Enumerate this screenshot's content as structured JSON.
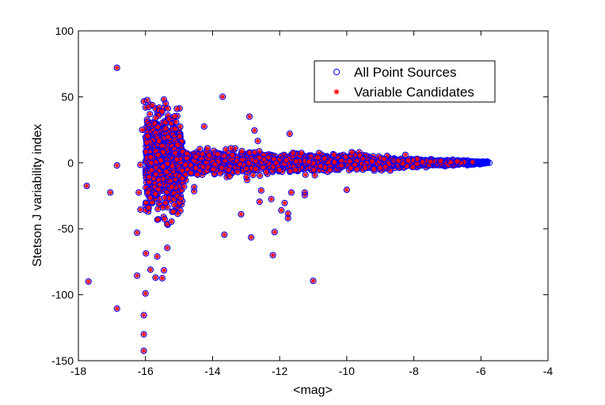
{
  "chart_data": {
    "type": "scatter",
    "title": "",
    "xlabel": "<mag>",
    "ylabel": "Stetson J variability index",
    "xlim": [
      -18,
      -4
    ],
    "ylim": [
      -150,
      100
    ],
    "xticks": [
      -18,
      -16,
      -14,
      -12,
      -10,
      -8,
      -6,
      -4
    ],
    "yticks": [
      -150,
      -100,
      -50,
      0,
      50,
      100
    ],
    "xtick_labels": [
      "-18",
      "-16",
      "-14",
      "-12",
      "-10",
      "-8",
      "-6",
      "-4"
    ],
    "ytick_labels": [
      "-150",
      "-100",
      "-50",
      "0",
      "50",
      "100"
    ],
    "grid": false,
    "legend_position": "top-right",
    "series": [
      {
        "name": "All Point Sources",
        "marker": "open-circle",
        "color": "#0000ff",
        "points": [
          [
            -17.75,
            -17.5
          ],
          [
            -17.7,
            -90
          ],
          [
            -17.05,
            -22.5
          ],
          [
            -16.85,
            -110.5
          ],
          [
            -16.85,
            72
          ],
          [
            -16.85,
            -2
          ],
          [
            -16.25,
            -85.5
          ],
          [
            -16.25,
            -53
          ],
          [
            -16.2,
            -22.5
          ],
          [
            -16.15,
            -35.5
          ],
          [
            -16.15,
            -1.5
          ],
          [
            -16.05,
            -115.5
          ],
          [
            -16.05,
            -130
          ],
          [
            -16.05,
            -142.5
          ],
          [
            -16.0,
            -99
          ],
          [
            -16.1,
            25
          ],
          [
            -16.05,
            46.5
          ],
          [
            -15.95,
            47.5
          ],
          [
            -15.95,
            31
          ],
          [
            -15.9,
            29.5
          ],
          [
            -15.85,
            -81
          ],
          [
            -15.7,
            -87
          ],
          [
            -15.65,
            -71
          ],
          [
            -15.5,
            -87.5
          ],
          [
            -15.45,
            -81.5
          ],
          [
            -15.5,
            39
          ],
          [
            -15.45,
            48
          ],
          [
            -15.4,
            45
          ],
          [
            -15.35,
            -64.5
          ],
          [
            -15.3,
            33
          ],
          [
            -14.95,
            -27
          ],
          [
            -14.9,
            -12
          ],
          [
            -14.9,
            -6
          ],
          [
            -14.85,
            -18
          ],
          [
            -14.8,
            -9
          ],
          [
            -14.65,
            -7.5
          ],
          [
            -14.55,
            -21.5
          ],
          [
            -14.55,
            -18.5
          ],
          [
            -14.5,
            4.5
          ],
          [
            -14.45,
            -9
          ],
          [
            -14.25,
            27.5
          ],
          [
            -14.15,
            11
          ],
          [
            -13.85,
            6.5
          ],
          [
            -13.7,
            50
          ],
          [
            -13.65,
            -54.5
          ],
          [
            -13.45,
            11
          ],
          [
            -13.25,
            -7
          ],
          [
            -13.15,
            -39
          ],
          [
            -12.9,
            35
          ],
          [
            -12.85,
            -56.5
          ],
          [
            -12.75,
            24.5
          ],
          [
            -12.65,
            16.5
          ],
          [
            -12.6,
            -29.5
          ],
          [
            -12.55,
            -21
          ],
          [
            -12.4,
            -7
          ],
          [
            -12.25,
            -27.5
          ],
          [
            -12.2,
            -70
          ],
          [
            -12.15,
            -52.5
          ],
          [
            -12.0,
            -5.5
          ],
          [
            -11.95,
            -36
          ],
          [
            -11.85,
            -30.5
          ],
          [
            -11.75,
            -38.5
          ],
          [
            -11.75,
            -42
          ],
          [
            -11.7,
            22
          ],
          [
            -11.65,
            -22.5
          ],
          [
            -11.6,
            7.5
          ],
          [
            -11.35,
            7.5
          ],
          [
            -11.25,
            -22.5
          ],
          [
            -11.25,
            -24.5
          ],
          [
            -11.0,
            -89.5
          ],
          [
            -10.95,
            -9.5
          ],
          [
            -10.5,
            -5.5
          ],
          [
            -10.0,
            -20.5
          ],
          [
            -9.85,
            8
          ],
          [
            -9.7,
            -5
          ],
          [
            -9.45,
            -4
          ],
          [
            -9.0,
            -4
          ],
          [
            -8.85,
            -3
          ],
          [
            -8.45,
            1.5
          ],
          [
            -8.25,
            6
          ],
          [
            -7.9,
            3
          ],
          [
            -7.2,
            1.5
          ],
          [
            -6.7,
            1
          ],
          [
            -6.25,
            0.5
          ],
          [
            -6.0,
            0
          ],
          [
            -5.9,
            0
          ],
          [
            -5.75,
            0
          ]
        ]
      },
      {
        "name": "Variable Candidates",
        "marker": "asterisk",
        "color": "#ff0000",
        "points": [
          [
            -17.75,
            -17.5
          ],
          [
            -17.7,
            -90
          ],
          [
            -17.05,
            -22.5
          ],
          [
            -16.85,
            -110.5
          ],
          [
            -16.85,
            72
          ],
          [
            -16.85,
            -2
          ],
          [
            -16.25,
            -85.5
          ],
          [
            -16.25,
            -53
          ],
          [
            -16.2,
            -22.5
          ],
          [
            -16.15,
            -35.5
          ],
          [
            -16.15,
            -1.5
          ],
          [
            -16.05,
            -115.5
          ],
          [
            -16.05,
            -130
          ],
          [
            -16.05,
            -142.5
          ],
          [
            -16.0,
            -99
          ],
          [
            -16.1,
            25
          ],
          [
            -16.05,
            46.5
          ],
          [
            -15.95,
            47.5
          ],
          [
            -15.95,
            31
          ],
          [
            -15.9,
            29.5
          ],
          [
            -15.85,
            -81
          ],
          [
            -15.7,
            -87
          ],
          [
            -15.65,
            -71
          ],
          [
            -15.5,
            -87.5
          ],
          [
            -15.45,
            -81.5
          ],
          [
            -15.5,
            39
          ],
          [
            -15.45,
            48
          ],
          [
            -15.4,
            45
          ],
          [
            -15.35,
            -64.5
          ],
          [
            -15.3,
            33
          ],
          [
            -14.95,
            -27
          ],
          [
            -14.9,
            -12
          ],
          [
            -14.9,
            -6
          ],
          [
            -14.85,
            -18
          ],
          [
            -14.8,
            -9
          ],
          [
            -14.65,
            -7.5
          ],
          [
            -14.55,
            -21.5
          ],
          [
            -14.55,
            -18.5
          ],
          [
            -14.5,
            4.5
          ],
          [
            -14.45,
            -9
          ],
          [
            -14.25,
            27.5
          ],
          [
            -14.15,
            11
          ],
          [
            -13.85,
            6.5
          ],
          [
            -13.7,
            50
          ],
          [
            -13.65,
            -54.5
          ],
          [
            -13.45,
            11
          ],
          [
            -13.25,
            -7
          ],
          [
            -13.15,
            -39
          ],
          [
            -12.9,
            35
          ],
          [
            -12.85,
            -56.5
          ],
          [
            -12.75,
            24.5
          ],
          [
            -12.65,
            16.5
          ],
          [
            -12.6,
            -29.5
          ],
          [
            -12.55,
            -21
          ],
          [
            -12.4,
            -7
          ],
          [
            -12.25,
            -27.5
          ],
          [
            -12.2,
            -70
          ],
          [
            -12.15,
            -52.5
          ],
          [
            -12.0,
            -5.5
          ],
          [
            -11.95,
            -36
          ],
          [
            -11.85,
            -30.5
          ],
          [
            -11.75,
            -38.5
          ],
          [
            -11.75,
            -42
          ],
          [
            -11.7,
            22
          ],
          [
            -11.65,
            -22.5
          ],
          [
            -11.6,
            7.5
          ],
          [
            -11.35,
            7.5
          ],
          [
            -11.25,
            -22.5
          ],
          [
            -11.25,
            -24.5
          ],
          [
            -11.0,
            -89.5
          ],
          [
            -10.95,
            -9.5
          ],
          [
            -10.5,
            -5.5
          ],
          [
            -10.0,
            -20.5
          ],
          [
            -9.85,
            8
          ],
          [
            -9.7,
            -5
          ],
          [
            -9.45,
            -4
          ],
          [
            -9.0,
            -4
          ],
          [
            -8.85,
            -3
          ],
          [
            -8.45,
            1.5
          ],
          [
            -8.25,
            6
          ],
          [
            -7.9,
            3
          ],
          [
            -7.2,
            1.5
          ],
          [
            -6.7,
            1
          ],
          [
            -6.25,
            0.5
          ]
        ]
      }
    ]
  }
}
